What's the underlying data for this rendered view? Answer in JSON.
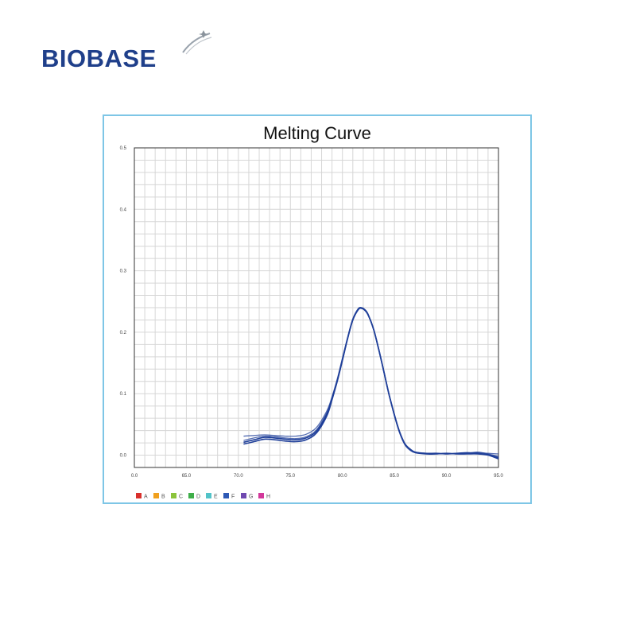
{
  "brand": {
    "name": "BIOBASE"
  },
  "colors": {
    "brand": "#1f3f8a",
    "frame": "#7ec6e6",
    "curve": "#1f3f99",
    "grid": "#d6d6d6"
  },
  "chart_data": {
    "type": "line",
    "title": "Melting Curve",
    "xlabel": "",
    "ylabel": "",
    "xlim": [
      60.0,
      95.0
    ],
    "ylim": [
      -0.02,
      0.5
    ],
    "xticks": [
      "0.0",
      "65.0",
      "70.0",
      "75.0",
      "80.0",
      "85.0",
      "90.0",
      "95.0"
    ],
    "yticks": [
      "0.5",
      "0.4",
      "0.3",
      "0.2",
      "0.1",
      "0.0"
    ],
    "grid": true,
    "legend": {
      "placement": "bottom-left",
      "entries": [
        {
          "label": "A",
          "color": "#d9302c"
        },
        {
          "label": "B",
          "color": "#f0a01e"
        },
        {
          "label": "C",
          "color": "#8cc43c"
        },
        {
          "label": "D",
          "color": "#3fae49"
        },
        {
          "label": "E",
          "color": "#52c3c8"
        },
        {
          "label": "F",
          "color": "#2d59b5"
        },
        {
          "label": "G",
          "color": "#7049b0"
        },
        {
          "label": "H",
          "color": "#d2389a"
        }
      ]
    },
    "series": [
      {
        "x": [
          70.5,
          71.5,
          72.5,
          73.5,
          74.5,
          75.5,
          76.5,
          77.5,
          78.5,
          79.0,
          79.5,
          80.0,
          80.5,
          81.0,
          81.5,
          81.8,
          82.2,
          82.5,
          83.0,
          83.5,
          84.0,
          84.5,
          85.0,
          85.5,
          86.0,
          86.5,
          87.0,
          88.0,
          89.0,
          90.0,
          91.0,
          92.0,
          93.0,
          94.0,
          95.0
        ],
        "values": [
          0.031,
          0.032,
          0.033,
          0.032,
          0.031,
          0.031,
          0.034,
          0.045,
          0.072,
          0.095,
          0.124,
          0.158,
          0.192,
          0.222,
          0.238,
          0.24,
          0.236,
          0.228,
          0.205,
          0.172,
          0.135,
          0.098,
          0.065,
          0.037,
          0.018,
          0.009,
          0.005,
          0.003,
          0.003,
          0.002,
          0.003,
          0.003,
          0.004,
          0.003,
          0.002
        ]
      },
      {
        "x": [
          70.5,
          71.5,
          72.5,
          73.5,
          74.5,
          75.5,
          76.5,
          77.5,
          78.5,
          79.0,
          79.5,
          80.0,
          80.5,
          81.0,
          81.5,
          81.8,
          82.2,
          82.5,
          83.0,
          83.5,
          84.0,
          84.5,
          85.0,
          85.5,
          86.0,
          86.5,
          87.0,
          88.0,
          89.0,
          90.0,
          91.0,
          92.0,
          93.0,
          94.0,
          95.0
        ],
        "values": [
          0.024,
          0.028,
          0.031,
          0.03,
          0.028,
          0.027,
          0.03,
          0.041,
          0.069,
          0.093,
          0.122,
          0.156,
          0.191,
          0.221,
          0.237,
          0.239,
          0.235,
          0.227,
          0.204,
          0.171,
          0.134,
          0.097,
          0.064,
          0.036,
          0.017,
          0.008,
          0.004,
          0.003,
          0.002,
          0.003,
          0.002,
          0.003,
          0.005,
          0.002,
          -0.002
        ]
      },
      {
        "x": [
          70.5,
          71.5,
          72.5,
          73.5,
          74.5,
          75.5,
          76.5,
          77.5,
          78.5,
          79.0,
          79.5,
          80.0,
          80.5,
          81.0,
          81.5,
          81.8,
          82.2,
          82.5,
          83.0,
          83.5,
          84.0,
          84.5,
          85.0,
          85.5,
          86.0,
          86.5,
          87.0,
          88.0,
          89.0,
          90.0,
          91.0,
          92.0,
          93.0,
          94.0,
          95.0
        ],
        "values": [
          0.021,
          0.025,
          0.029,
          0.028,
          0.026,
          0.025,
          0.028,
          0.039,
          0.067,
          0.092,
          0.121,
          0.155,
          0.19,
          0.22,
          0.237,
          0.24,
          0.236,
          0.228,
          0.205,
          0.172,
          0.135,
          0.098,
          0.066,
          0.038,
          0.019,
          0.01,
          0.005,
          0.003,
          0.003,
          0.002,
          0.003,
          0.004,
          0.003,
          0.001,
          -0.004
        ]
      },
      {
        "x": [
          70.5,
          71.5,
          72.5,
          73.5,
          74.5,
          75.5,
          76.5,
          77.5,
          78.5,
          79.0,
          79.5,
          80.0,
          80.5,
          81.0,
          81.5,
          81.8,
          82.2,
          82.5,
          83.0,
          83.5,
          84.0,
          84.5,
          85.0,
          85.5,
          86.0,
          86.5,
          87.0,
          88.0,
          89.0,
          90.0,
          91.0,
          92.0,
          93.0,
          94.0,
          95.0
        ],
        "values": [
          0.018,
          0.022,
          0.026,
          0.025,
          0.023,
          0.022,
          0.025,
          0.036,
          0.064,
          0.09,
          0.12,
          0.154,
          0.19,
          0.22,
          0.236,
          0.239,
          0.235,
          0.227,
          0.204,
          0.171,
          0.134,
          0.097,
          0.065,
          0.037,
          0.018,
          0.009,
          0.004,
          0.002,
          0.002,
          0.003,
          0.002,
          0.002,
          0.002,
          0.0,
          -0.006
        ]
      }
    ]
  }
}
